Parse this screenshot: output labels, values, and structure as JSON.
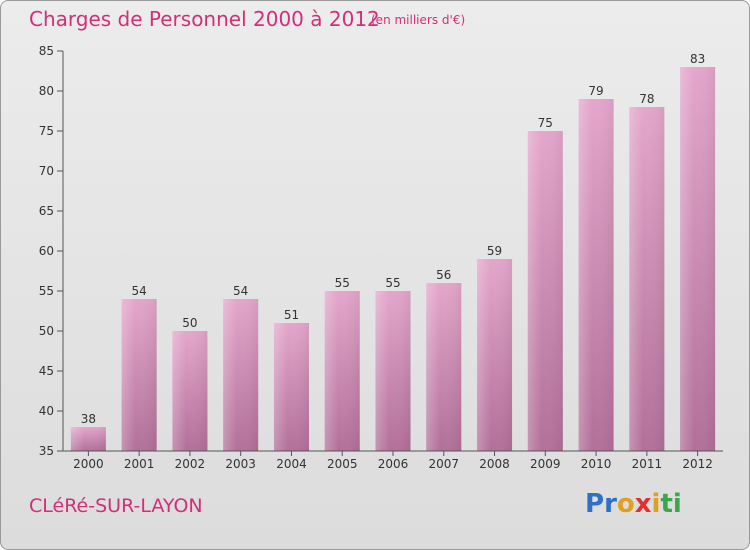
{
  "title": "Charges de Personnel 2000 à 2012",
  "unit_note": "(en milliers d'€)",
  "commune": "CLéRé-SUR-LAYON",
  "logo": {
    "letters": [
      "P",
      "r",
      "o",
      "x",
      "i",
      "t",
      "i"
    ],
    "colors": [
      "#2f6fc4",
      "#2f6fc4",
      "#e0a020",
      "#e03030",
      "#e0a020",
      "#3aa84a",
      "#3aa84a"
    ]
  },
  "chart_data": {
    "type": "bar",
    "title": "Charges de Personnel 2000 à 2012",
    "subtitle": "(en milliers d'€)",
    "categories": [
      "2000",
      "2001",
      "2002",
      "2003",
      "2004",
      "2005",
      "2006",
      "2007",
      "2008",
      "2009",
      "2010",
      "2011",
      "2012"
    ],
    "values": [
      38,
      54,
      50,
      54,
      51,
      55,
      55,
      56,
      59,
      75,
      79,
      78,
      83
    ],
    "ylim": [
      35,
      85
    ],
    "yticks": [
      35,
      40,
      45,
      50,
      55,
      60,
      65,
      70,
      75,
      80,
      85
    ],
    "xlabel": "",
    "ylabel": "",
    "grid": false,
    "bar_color": "#d88db8"
  }
}
